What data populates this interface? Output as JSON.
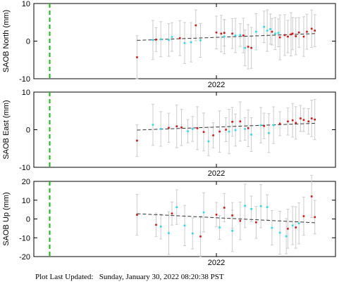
{
  "chart_data": [
    {
      "type": "scatter",
      "ylabel": "SAOB North (mm)",
      "ylim": [
        -10,
        10
      ],
      "yticks": [
        10,
        0,
        -10
      ],
      "xlim": [
        2020.85,
        2022.75
      ],
      "xticks": [
        2022
      ],
      "xtick_labels": [
        "2022"
      ],
      "event_line_x": 2020.95,
      "trend": {
        "x": [
          2021.5,
          2022.62
        ],
        "y": [
          0.2,
          2.0
        ]
      },
      "series": [
        {
          "color": "#dd1111",
          "x": [
            2021.5,
            2021.62,
            2021.77,
            2021.87,
            2022.0,
            2022.03,
            2022.05,
            2022.1,
            2022.17,
            2022.2,
            2022.22,
            2022.35,
            2022.4,
            2022.43,
            2022.45,
            2022.47,
            2022.48,
            2022.5,
            2022.52,
            2022.55,
            2022.57,
            2022.6,
            2022.62
          ],
          "y": [
            -4.3,
            0.4,
            0.8,
            4.2,
            2.3,
            2.0,
            2.2,
            2.0,
            1.5,
            -1.5,
            -1.8,
            2.5,
            1.0,
            1.6,
            1.2,
            1.8,
            2.0,
            1.3,
            2.3,
            1.2,
            2.5,
            3.3,
            2.8
          ]
        },
        {
          "color": "#22ddee",
          "x": [
            2021.6,
            2021.65,
            2021.7,
            2021.72,
            2021.8,
            2021.84,
            2021.9,
            2022.05,
            2022.12,
            2022.15,
            2022.18,
            2022.25,
            2022.3,
            2022.32,
            2022.34,
            2022.37,
            2022.39
          ],
          "y": [
            0.3,
            0.5,
            0.3,
            1.1,
            -0.5,
            -0.3,
            0.2,
            1.2,
            1.5,
            1.6,
            -1.8,
            2.5,
            3.8,
            2.8,
            3.2,
            2.0,
            2.2
          ]
        }
      ]
    },
    {
      "type": "scatter",
      "ylabel": "SAOB East (mm)",
      "ylim": [
        -10,
        10
      ],
      "yticks": [
        10,
        0,
        -10
      ],
      "xlim": [
        2020.85,
        2022.75
      ],
      "xticks": [
        2022
      ],
      "xtick_labels": [
        "2022"
      ],
      "event_line_x": 2020.95,
      "trend": {
        "x": [
          2021.5,
          2022.62
        ],
        "y": [
          -0.1,
          1.7
        ]
      },
      "series": [
        {
          "color": "#dd1111",
          "x": [
            2021.5,
            2021.7,
            2021.75,
            2021.78,
            2021.88,
            2021.92,
            2021.98,
            2022.02,
            2022.06,
            2022.1,
            2022.15,
            2022.2,
            2022.3,
            2022.4,
            2022.45,
            2022.48,
            2022.5,
            2022.53,
            2022.55,
            2022.58,
            2022.6,
            2022.62
          ],
          "y": [
            -2.9,
            0.5,
            0.9,
            0.6,
            0.4,
            -0.6,
            -1.5,
            -0.5,
            0.0,
            2.1,
            2.2,
            0.4,
            1.0,
            1.6,
            2.2,
            2.5,
            1.8,
            3.0,
            2.6,
            2.2,
            3.0,
            2.7
          ]
        },
        {
          "color": "#22ddee",
          "x": [
            2021.6,
            2021.65,
            2021.82,
            2021.85,
            2021.95,
            2022.08,
            2022.12,
            2022.18,
            2022.22,
            2022.28,
            2022.33,
            2022.36
          ],
          "y": [
            1.3,
            0.2,
            -0.4,
            0.2,
            -3.1,
            -0.5,
            -0.1,
            0.2,
            -1.3,
            1.2,
            -0.9,
            1.2
          ]
        }
      ]
    },
    {
      "type": "scatter",
      "ylabel": "SAOB Up (mm)",
      "ylim": [
        -20,
        20
      ],
      "yticks": [
        20,
        10,
        0,
        -10,
        -20
      ],
      "xlim": [
        2020.85,
        2022.75
      ],
      "xticks": [
        2022
      ],
      "xtick_labels": [
        "2022"
      ],
      "event_line_x": 2020.95,
      "trend": {
        "x": [
          2021.5,
          2022.62
        ],
        "y": [
          2.8,
          -2.0
        ]
      },
      "series": [
        {
          "color": "#dd1111",
          "x": [
            2021.5,
            2021.62,
            2021.72,
            2021.9,
            2022.0,
            2022.05,
            2022.1,
            2022.15,
            2022.25,
            2022.45,
            2022.5,
            2022.55,
            2022.6,
            2022.62
          ],
          "y": [
            2.2,
            -3.1,
            2.9,
            -9.3,
            2.3,
            6.0,
            1.9,
            -1.0,
            -1.8,
            -5.2,
            -4.5,
            1.5,
            12.0,
            1.0
          ]
        },
        {
          "color": "#22ddee",
          "x": [
            2021.65,
            2021.7,
            2021.75,
            2021.8,
            2021.85,
            2021.92,
            2022.02,
            2022.1,
            2022.18,
            2022.22,
            2022.28,
            2022.32,
            2022.35,
            2022.4,
            2022.44,
            2022.48,
            2022.52
          ],
          "y": [
            -4.0,
            -7.5,
            6.3,
            -3.5,
            -7.7,
            3.5,
            -4.5,
            -6.3,
            7.0,
            5.3,
            6.8,
            6.3,
            -4.7,
            -7.3,
            -9.2,
            -3.5,
            -2.3
          ]
        }
      ]
    }
  ],
  "footer": {
    "label": "Plot Last Updated:",
    "timestamp": "Sunday, January 30, 2022 08:20:38 PST"
  }
}
